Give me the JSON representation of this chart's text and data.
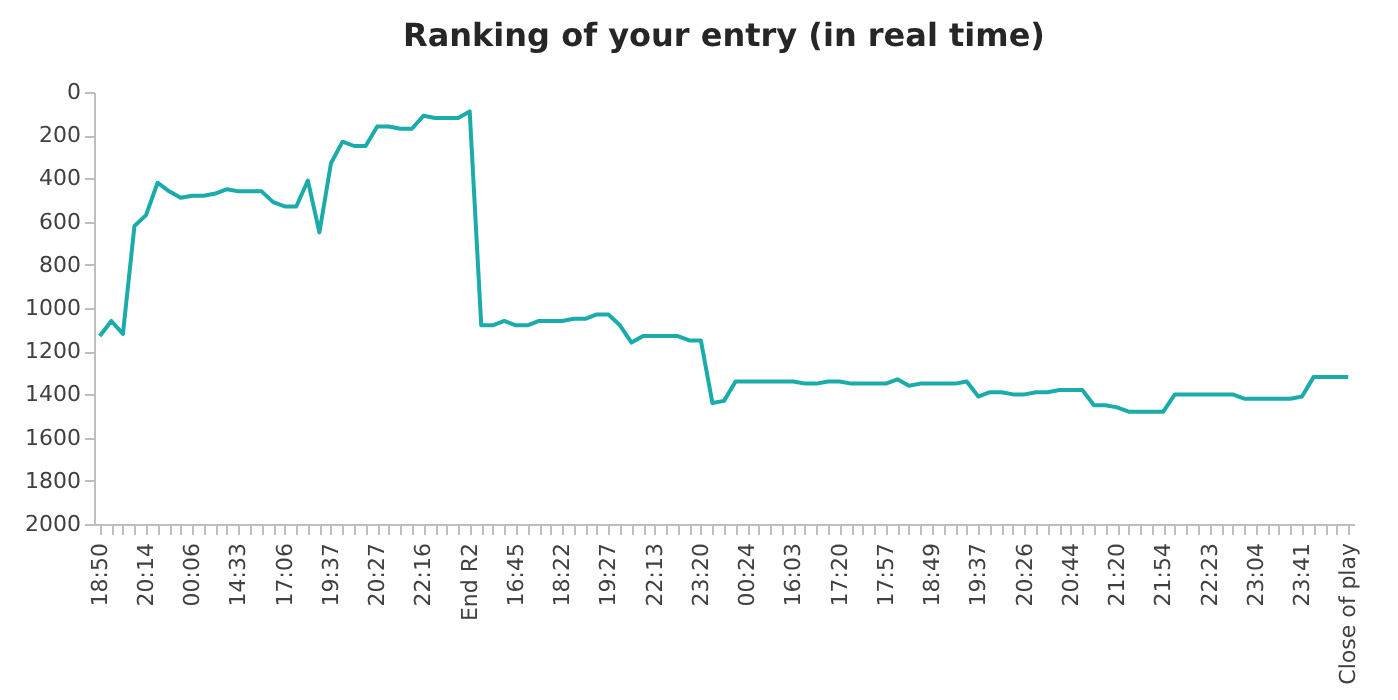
{
  "chart_data": {
    "type": "line",
    "title": "Ranking of your entry (in real time)",
    "categories": [
      "18:50",
      null,
      null,
      null,
      "20:14",
      null,
      null,
      null,
      "00:06",
      null,
      null,
      null,
      "14:33",
      null,
      null,
      null,
      "17:06",
      null,
      null,
      null,
      "19:37",
      null,
      null,
      null,
      "20:27",
      null,
      null,
      null,
      "22:16",
      null,
      null,
      null,
      "End R2",
      null,
      null,
      null,
      "16:45",
      null,
      null,
      null,
      "18:22",
      null,
      null,
      null,
      "19:27",
      null,
      null,
      null,
      "22:13",
      null,
      null,
      null,
      "23:20",
      null,
      null,
      null,
      "00:24",
      null,
      null,
      null,
      "16:03",
      null,
      null,
      null,
      "17:20",
      null,
      null,
      null,
      "17:57",
      null,
      null,
      null,
      "18:49",
      null,
      null,
      null,
      "19:37",
      null,
      null,
      null,
      "20:26",
      null,
      null,
      null,
      "20:44",
      null,
      null,
      null,
      "21:20",
      null,
      null,
      null,
      "21:54",
      null,
      null,
      null,
      "22:23",
      null,
      null,
      null,
      "23:04",
      null,
      null,
      null,
      "23:41",
      null,
      null,
      null,
      "Close of play"
    ],
    "series": [
      {
        "color": "#1aabaa",
        "values": [
          1130,
          1060,
          1120,
          620,
          570,
          420,
          460,
          490,
          480,
          480,
          470,
          450,
          460,
          460,
          460,
          510,
          530,
          530,
          410,
          650,
          330,
          230,
          250,
          250,
          160,
          160,
          170,
          170,
          110,
          120,
          120,
          120,
          90,
          1080,
          1080,
          1060,
          1080,
          1080,
          1060,
          1060,
          1060,
          1050,
          1050,
          1030,
          1030,
          1080,
          1160,
          1130,
          1130,
          1130,
          1130,
          1150,
          1150,
          1440,
          1430,
          1340,
          1340,
          1340,
          1340,
          1340,
          1340,
          1350,
          1350,
          1340,
          1340,
          1350,
          1350,
          1350,
          1350,
          1330,
          1360,
          1350,
          1350,
          1350,
          1350,
          1340,
          1410,
          1390,
          1390,
          1400,
          1400,
          1390,
          1390,
          1380,
          1380,
          1380,
          1450,
          1450,
          1460,
          1480,
          1480,
          1480,
          1480,
          1400,
          1400,
          1400,
          1400,
          1400,
          1400,
          1420,
          1420,
          1420,
          1420,
          1420,
          1410,
          1320,
          1320,
          1320,
          1320
        ]
      }
    ],
    "ylim": [
      2000,
      0
    ],
    "yticks": [
      0,
      200,
      400,
      600,
      800,
      1000,
      1200,
      1400,
      1600,
      1800,
      2000
    ],
    "grid": false,
    "marker": "none",
    "line_style": "solid"
  }
}
